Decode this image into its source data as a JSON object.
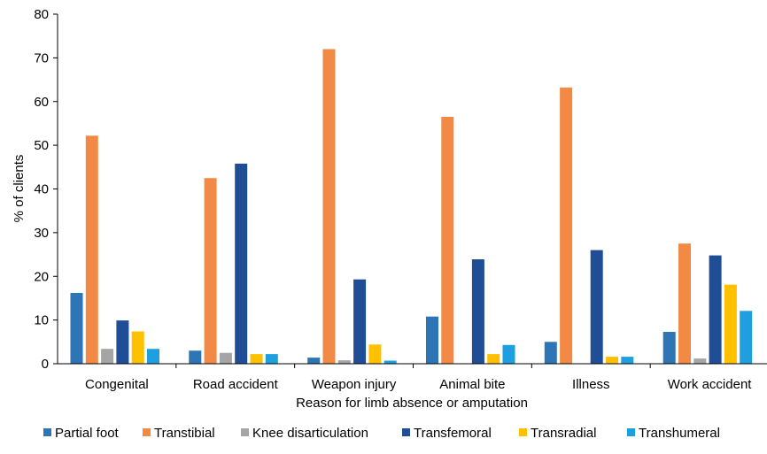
{
  "chart_data": {
    "type": "bar",
    "title": "",
    "xlabel": "Reason for limb absence or amputation",
    "ylabel": "% of clients",
    "ylim": [
      0,
      80
    ],
    "yticks": [
      0,
      10,
      20,
      30,
      40,
      50,
      60,
      70,
      80
    ],
    "grid": false,
    "legend": "bottom",
    "categories": [
      "Congenital",
      "Road accident",
      "Weapon injury",
      "Animal bite",
      "Illness",
      "Work accident"
    ],
    "series": [
      {
        "name": "Partial foot",
        "color": "#2e75b6",
        "values": [
          16.2,
          3.0,
          1.4,
          10.8,
          5.0,
          7.3
        ]
      },
      {
        "name": "Transtibial",
        "color": "#f28a45",
        "values": [
          52.2,
          42.5,
          72.0,
          56.5,
          63.2,
          27.5
        ]
      },
      {
        "name": "Knee disarticulation",
        "color": "#a5a5a5",
        "values": [
          3.4,
          2.5,
          0.8,
          0.0,
          0.0,
          1.2
        ]
      },
      {
        "name": "Transfemoral",
        "color": "#1f4e96",
        "values": [
          9.9,
          45.8,
          19.3,
          23.9,
          26.0,
          24.8
        ]
      },
      {
        "name": "Transradial",
        "color": "#ffc000",
        "values": [
          7.4,
          2.2,
          4.4,
          2.2,
          1.6,
          18.1
        ]
      },
      {
        "name": "Transhumeral",
        "color": "#1e9fe0",
        "values": [
          3.4,
          2.2,
          0.7,
          4.3,
          1.6,
          12.1
        ]
      }
    ]
  }
}
